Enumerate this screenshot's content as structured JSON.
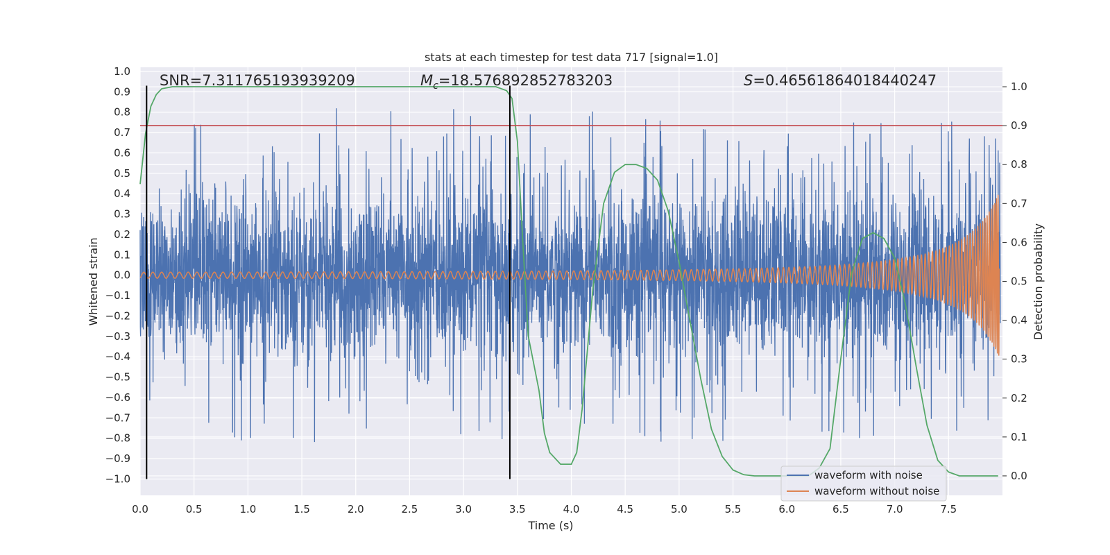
{
  "chart_data": {
    "type": "line",
    "title": "stats at each timestep for test data 717 [signal=1.0]",
    "xlabel": "Time (s)",
    "ylabel": "Whitened strain",
    "y2label": "Detection probability",
    "xlim": [
      0.0,
      8.0
    ],
    "ylim": [
      -1.08,
      1.02
    ],
    "y2lim": [
      -0.05,
      1.05
    ],
    "x_ticks": [
      0.0,
      0.5,
      1.0,
      1.5,
      2.0,
      2.5,
      3.0,
      3.5,
      4.0,
      4.5,
      5.0,
      5.5,
      6.0,
      6.5,
      7.0,
      7.5
    ],
    "x_tick_labels": [
      "0.0",
      "0.5",
      "1.0",
      "1.5",
      "2.0",
      "2.5",
      "3.0",
      "3.5",
      "4.0",
      "4.5",
      "5.0",
      "5.5",
      "6.0",
      "6.5",
      "7.0",
      "7.5"
    ],
    "y_ticks": [
      1.0,
      0.9,
      0.8,
      0.7,
      0.6,
      0.5,
      0.4,
      0.3,
      0.2,
      0.1,
      0.0,
      -0.1,
      -0.2,
      -0.3,
      -0.4,
      -0.5,
      -0.6,
      -0.7,
      -0.8,
      -0.9,
      -1.0
    ],
    "y_tick_labels": [
      "1.0",
      "0.9",
      "0.8",
      "0.7",
      "0.6",
      "0.5",
      "0.4",
      "0.3",
      "0.2",
      "0.1",
      "0.0",
      "−0.1",
      "−0.2",
      "−0.3",
      "−0.4",
      "−0.5",
      "−0.6",
      "−0.7",
      "−0.8",
      "−0.9",
      "−1.0"
    ],
    "y2_ticks": [
      1.0,
      0.9,
      0.8,
      0.7,
      0.6,
      0.5,
      0.4,
      0.3,
      0.2,
      0.1,
      0.0
    ],
    "y2_tick_labels": [
      "1.0",
      "0.9",
      "0.8",
      "0.7",
      "0.6",
      "0.5",
      "0.4",
      "0.3",
      "0.2",
      "0.1",
      "0.0"
    ],
    "annotations": {
      "snr_label": "SNR=7.311765193939209",
      "mc_symbol": "M",
      "mc_sub": "c",
      "mc_value": "=18.576892852783203",
      "s_symbol": "S",
      "s_value": "=0.46561864018440247"
    },
    "vertical_lines": [
      0.06,
      3.43
    ],
    "vertical_line_range": [
      -1.0,
      0.93
    ],
    "threshold": 0.9,
    "detection_probability": {
      "x": [
        0.0,
        0.05,
        0.1,
        0.15,
        0.2,
        0.3,
        0.5,
        1.0,
        2.0,
        3.0,
        3.3,
        3.4,
        3.45,
        3.5,
        3.55,
        3.6,
        3.7,
        3.75,
        3.8,
        3.9,
        4.0,
        4.05,
        4.1,
        4.2,
        4.3,
        4.4,
        4.5,
        4.6,
        4.7,
        4.8,
        4.9,
        5.0,
        5.1,
        5.2,
        5.3,
        5.4,
        5.5,
        5.6,
        5.7,
        5.8,
        6.0,
        6.2,
        6.3,
        6.4,
        6.5,
        6.6,
        6.7,
        6.8,
        6.9,
        7.0,
        7.1,
        7.2,
        7.3,
        7.4,
        7.5,
        7.6,
        7.8,
        7.96
      ],
      "y": [
        0.75,
        0.88,
        0.95,
        0.98,
        0.995,
        1.0,
        1.0,
        1.0,
        1.0,
        1.0,
        1.0,
        0.99,
        0.97,
        0.86,
        0.6,
        0.36,
        0.22,
        0.11,
        0.06,
        0.03,
        0.03,
        0.06,
        0.17,
        0.48,
        0.7,
        0.78,
        0.8,
        0.8,
        0.79,
        0.76,
        0.68,
        0.55,
        0.4,
        0.25,
        0.12,
        0.05,
        0.015,
        0.003,
        0.0,
        0.0,
        0.0,
        0.0,
        0.02,
        0.07,
        0.3,
        0.52,
        0.61,
        0.625,
        0.61,
        0.56,
        0.44,
        0.28,
        0.13,
        0.04,
        0.01,
        0.0,
        0.0,
        0.0
      ]
    },
    "series": [
      {
        "name": "waveform with noise",
        "color": "#4C72B0"
      },
      {
        "name": "waveform without noise",
        "color": "#DD8452"
      },
      {
        "name": "detection probability",
        "color": "#55A868"
      },
      {
        "name": "threshold",
        "color": "#C44E52"
      }
    ],
    "legend_entries": [
      "waveform with noise",
      "waveform without noise"
    ],
    "legend_position": "lower-right",
    "colors": {
      "plot_bg": "#EAEAF2",
      "grid": "#FFFFFF",
      "noise": "#4C72B0",
      "clean": "#DD8452",
      "prob": "#55A868",
      "threshold": "#C44E52",
      "vline": "#000000"
    }
  }
}
